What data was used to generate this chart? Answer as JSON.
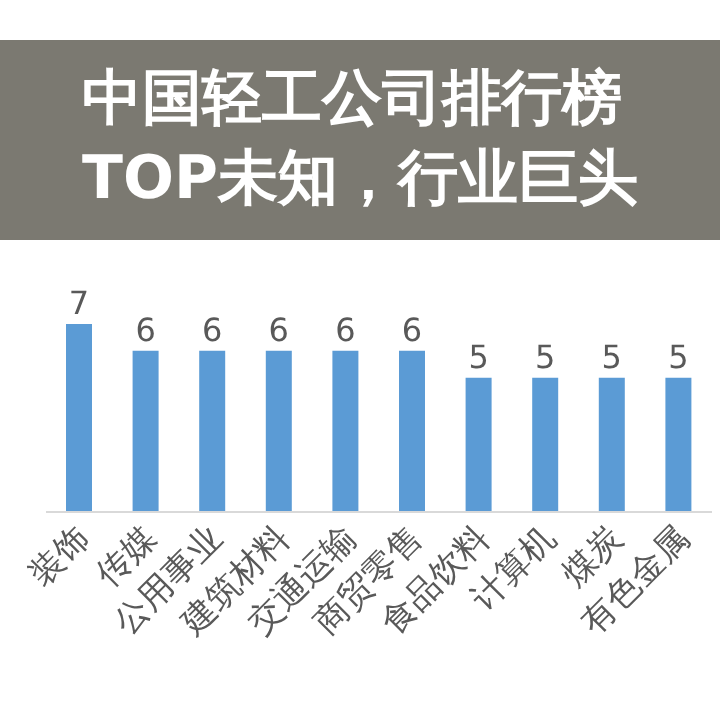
{
  "chart_data": {
    "type": "bar",
    "title": "中国轻工公司排行榜\nTOP未知，行业巨头",
    "categories": [
      "装饰",
      "传媒",
      "公用事业",
      "建筑材料",
      "交通运输",
      "商贸零售",
      "食品饮料",
      "计算机",
      "煤炭",
      "有色金属"
    ],
    "values": [
      7,
      6,
      6,
      6,
      6,
      6,
      5,
      5,
      5,
      5
    ],
    "color": "#5b9bd5",
    "tick_labels": "x",
    "data_labels": true
  }
}
